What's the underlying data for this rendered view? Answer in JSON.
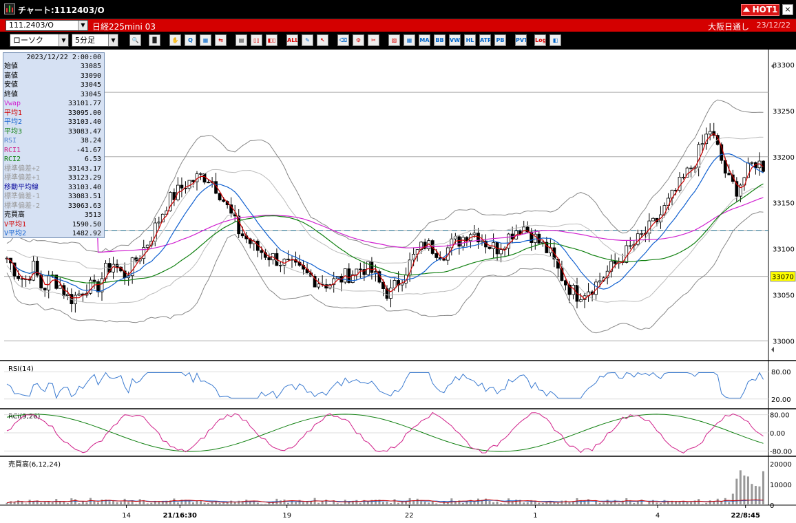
{
  "window": {
    "title": "チャート:1112403/O",
    "hot_label": "HOT",
    "hot_number": "1",
    "close_glyph": "×"
  },
  "infobar": {
    "code": "111.2403/O",
    "symbol_name": "日経225mini 03",
    "session": "大阪日通し",
    "date": "23/12/22"
  },
  "toolbar": {
    "chart_type": "ローソク",
    "period": "5分足",
    "buttons": [
      {
        "name": "zoom",
        "label": "🔍",
        "tone": ""
      },
      {
        "name": "bars",
        "label": "▐▌",
        "tone": "dk"
      },
      {
        "name": "hand",
        "label": "✋",
        "tone": "red"
      },
      {
        "name": "search-zoom",
        "label": "Q",
        "tone": ""
      },
      {
        "name": "window",
        "label": "▦",
        "tone": ""
      },
      {
        "name": "arrows",
        "label": "⇆",
        "tone": "red"
      },
      {
        "name": "doc",
        "label": "▤",
        "tone": "dk"
      },
      {
        "name": "candle-a",
        "label": "▯▯",
        "tone": "red"
      },
      {
        "name": "candle-b",
        "label": "◧▯",
        "tone": "red"
      },
      {
        "name": "all",
        "label": "ALL",
        "tone": "red"
      },
      {
        "name": "pencil",
        "label": "✎",
        "tone": ""
      },
      {
        "name": "cursor",
        "label": "↖",
        "tone": "red"
      },
      {
        "name": "eraser",
        "label": "⌫",
        "tone": ""
      },
      {
        "name": "settings",
        "label": "⚙",
        "tone": "red"
      },
      {
        "name": "tools",
        "label": "✂",
        "tone": "red"
      },
      {
        "name": "palette",
        "label": "▨",
        "tone": "red"
      },
      {
        "name": "grid-ind",
        "label": "▦",
        "tone": ""
      },
      {
        "name": "ma",
        "label": "MA",
        "tone": ""
      },
      {
        "name": "bb",
        "label": "BB",
        "tone": ""
      },
      {
        "name": "vwa",
        "label": "VWA",
        "tone": ""
      },
      {
        "name": "hl",
        "label": "HL",
        "tone": ""
      },
      {
        "name": "atr",
        "label": "ATR",
        "tone": ""
      },
      {
        "name": "pb",
        "label": "PB",
        "tone": ""
      },
      {
        "name": "pvt",
        "label": "PVT",
        "tone": ""
      },
      {
        "name": "log",
        "label": "Log",
        "tone": "red"
      },
      {
        "name": "window-split",
        "label": "◧",
        "tone": ""
      }
    ]
  },
  "databox": {
    "date": "2023/12/22 2:00:00",
    "rows": [
      {
        "key": "始値",
        "value": "33085",
        "color": "#000000"
      },
      {
        "key": "高値",
        "value": "33090",
        "color": "#000000"
      },
      {
        "key": "安値",
        "value": "33045",
        "color": "#000000"
      },
      {
        "key": "終値",
        "value": "33045",
        "color": "#000000"
      },
      {
        "key": "Vwap",
        "value": "33101.77",
        "color": "#d020d0"
      },
      {
        "key": "平均1",
        "value": "33095.00",
        "color": "#d00000"
      },
      {
        "key": "平均2",
        "value": "33103.40",
        "color": "#1060d0"
      },
      {
        "key": "平均3",
        "value": "33083.47",
        "color": "#108010"
      },
      {
        "key": "RSI",
        "value": "38.24",
        "color": "#5080d0"
      },
      {
        "key": "RCI1",
        "value": "-41.67",
        "color": "#d0208a"
      },
      {
        "key": "RCI2",
        "value": "6.53",
        "color": "#108010"
      },
      {
        "key": "標準偏差+2",
        "value": "33143.17",
        "color": "#999999"
      },
      {
        "key": "標準偏差+1",
        "value": "33123.29",
        "color": "#999999"
      },
      {
        "key": "移動平均線",
        "value": "33103.40",
        "color": "#1010a0"
      },
      {
        "key": "標準偏差-1",
        "value": "33083.51",
        "color": "#999999"
      },
      {
        "key": "標準偏差-2",
        "value": "33063.63",
        "color": "#999999"
      },
      {
        "key": "売買高",
        "value": "3513",
        "color": "#000000"
      },
      {
        "key": "V平均1",
        "value": "1590.50",
        "color": "#d00000"
      },
      {
        "key": "V平均2",
        "value": "1482.92",
        "color": "#1060d0"
      }
    ]
  },
  "price_axis": {
    "labels": [
      "33300",
      "33250",
      "33200",
      "33150",
      "33100",
      "33050",
      "33000"
    ],
    "current": "33070",
    "min": 32980,
    "max": 33315,
    "current_value": 33070,
    "dashed_value": 33120
  },
  "rsi_panel": {
    "title": "RSI(14)",
    "labels": [
      "80.00",
      "20.00"
    ]
  },
  "rci_panel": {
    "title": "RCI(9,26)",
    "labels": [
      "80.00",
      "0.00",
      "-80.00"
    ]
  },
  "vol_panel": {
    "title": "売買高(6,12,24)",
    "labels": [
      "20000",
      "10000",
      "0"
    ]
  },
  "time_axis": [
    {
      "label": "14",
      "bold": false
    },
    {
      "label": "21/16:30",
      "bold": true
    },
    {
      "label": "19",
      "bold": false
    },
    {
      "label": "22",
      "bold": false
    },
    {
      "label": "1",
      "bold": false
    },
    {
      "label": "4",
      "bold": false
    },
    {
      "label": "22/8:45",
      "bold": true
    }
  ],
  "chart_data": {
    "type": "candlestick",
    "price_range": [
      33000,
      33300
    ],
    "key_levels": [
      33270,
      33200,
      33120,
      33070,
      33000
    ],
    "series": [
      {
        "name": "Vwap",
        "color": "#d020d0"
      },
      {
        "name": "平均1",
        "color": "#d00000"
      },
      {
        "name": "平均2",
        "color": "#1060d0"
      },
      {
        "name": "平均3",
        "color": "#108010"
      }
    ],
    "closes": [
      33090,
      33075,
      33065,
      33080,
      33055,
      33070,
      33060,
      33045,
      33050,
      33060,
      33055,
      33075,
      33085,
      33070,
      33080,
      33095,
      33110,
      33130,
      33150,
      33160,
      33170,
      33175,
      33180,
      33175,
      33160,
      33140,
      33120,
      33110,
      33100,
      33095,
      33090,
      33085,
      33080,
      33075,
      33070,
      33065,
      33062,
      33065,
      33070,
      33075,
      33080,
      33075,
      33060,
      33050,
      33065,
      33080,
      33095,
      33105,
      33100,
      33095,
      33105,
      33110,
      33120,
      33115,
      33105,
      33100,
      33110,
      33120,
      33125,
      33115,
      33105,
      33095,
      33075,
      33060,
      33050,
      33055,
      33060,
      33070,
      33080,
      33090,
      33100,
      33110,
      33120,
      33130,
      33145,
      33160,
      33175,
      33190,
      33210,
      33230,
      33205,
      33175,
      33165,
      33180,
      33195,
      33190
    ]
  }
}
